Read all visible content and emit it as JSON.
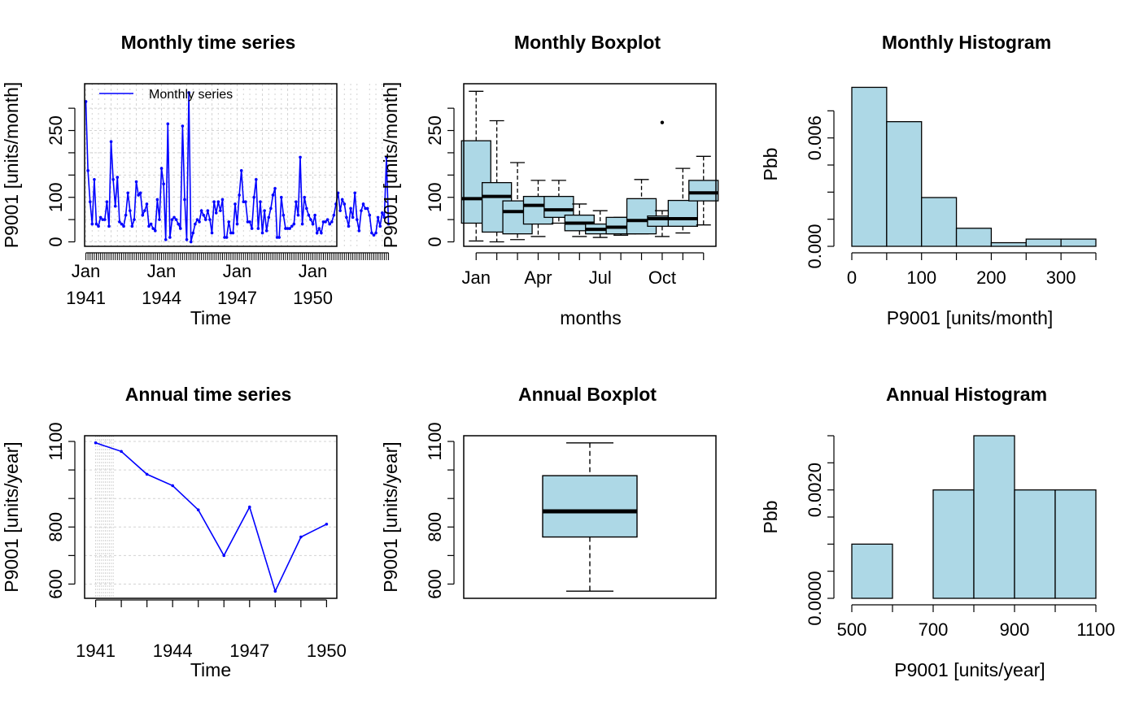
{
  "colors": {
    "box": "#add8e6",
    "bar": "#add8e6",
    "line": "#0000ff",
    "grid": "#d3d3d3",
    "axis": "#000000"
  },
  "chart_data": [
    {
      "id": "monthly-ts",
      "type": "line",
      "title": "Monthly time series",
      "xlabel": "Time",
      "ylabel": "P9001 [units/month]",
      "xlim": [
        1940.95,
        1950.95
      ],
      "ylim": [
        -10,
        355
      ],
      "yticks": [
        0,
        100,
        250
      ],
      "yticks_minor": [
        50,
        150,
        200,
        300
      ],
      "xticks": [
        {
          "line1": "Jan",
          "line2": "1941",
          "value": 1941
        },
        {
          "line1": "Jan",
          "line2": "1944",
          "value": 1944
        },
        {
          "line1": "Jan",
          "line2": "1947",
          "value": 1947
        },
        {
          "line1": "Jan",
          "line2": "1950",
          "value": 1950
        }
      ],
      "grid": true,
      "legend": {
        "label": "Monthly series",
        "position": "top-left"
      },
      "x": {
        "start": 1941,
        "step_months": 1
      },
      "values": [
        315,
        160,
        90,
        40,
        140,
        40,
        35,
        55,
        50,
        50,
        90,
        35,
        225,
        140,
        80,
        145,
        45,
        40,
        35,
        60,
        110,
        70,
        35,
        50,
        135,
        105,
        110,
        60,
        70,
        85,
        35,
        40,
        30,
        25,
        95,
        50,
        165,
        130,
        5,
        265,
        10,
        50,
        55,
        50,
        40,
        30,
        260,
        95,
        5,
        335,
        0,
        20,
        40,
        50,
        45,
        70,
        60,
        50,
        70,
        50,
        20,
        90,
        65,
        90,
        70,
        95,
        10,
        10,
        45,
        20,
        20,
        85,
        40,
        105,
        160,
        90,
        90,
        45,
        45,
        30,
        100,
        140,
        30,
        90,
        20,
        70,
        25,
        55,
        75,
        105,
        120,
        10,
        10,
        100,
        60,
        30,
        30,
        30,
        35,
        40,
        90,
        60,
        190,
        40,
        100,
        75,
        60,
        50,
        40,
        60,
        20,
        30,
        20,
        45,
        45,
        50,
        40,
        45,
        60,
        85,
        110,
        70,
        95,
        85,
        55,
        35,
        75,
        55,
        110,
        50,
        25,
        70,
        85,
        75,
        75,
        60,
        20,
        15,
        20,
        55,
        35,
        65,
        55,
        190,
        40
      ]
    },
    {
      "id": "monthly-box",
      "type": "box",
      "title": "Monthly Boxplot",
      "xlabel": "months",
      "ylabel": "P9001 [units/month]",
      "ylim": [
        -10,
        355
      ],
      "yticks": [
        0,
        100,
        250
      ],
      "yticks_minor": [
        50,
        150,
        200,
        300
      ],
      "xtick_labels": [
        "Jan",
        "Apr",
        "Jul",
        "Oct"
      ],
      "xtick_positions": [
        1,
        4,
        7,
        10
      ],
      "boxes": [
        {
          "lo": 2,
          "q1": 42,
          "med": 97,
          "q3": 227,
          "hi": 338
        },
        {
          "lo": 0,
          "q1": 22,
          "med": 102,
          "q3": 133,
          "hi": 272
        },
        {
          "lo": 5,
          "q1": 18,
          "med": 68,
          "q3": 92,
          "hi": 178
        },
        {
          "lo": 12,
          "q1": 40,
          "med": 82,
          "q3": 102,
          "hi": 138
        },
        {
          "lo": 42,
          "q1": 55,
          "med": 72,
          "q3": 102,
          "hi": 138
        },
        {
          "lo": 12,
          "q1": 25,
          "med": 42,
          "q3": 60,
          "hi": 85
        },
        {
          "lo": 10,
          "q1": 18,
          "med": 28,
          "q3": 40,
          "hi": 70
        },
        {
          "lo": 15,
          "q1": 18,
          "med": 33,
          "q3": 55,
          "hi": 55
        },
        {
          "lo": 18,
          "q1": 18,
          "med": 48,
          "q3": 97,
          "hi": 140
        },
        {
          "lo": 12,
          "q1": 35,
          "med": 52,
          "q3": 58,
          "hi": 70,
          "outliers": [
            268
          ]
        },
        {
          "lo": 20,
          "q1": 35,
          "med": 52,
          "q3": 93,
          "hi": 165
        },
        {
          "lo": 38,
          "q1": 92,
          "med": 110,
          "q3": 138,
          "hi": 192
        }
      ]
    },
    {
      "id": "monthly-hist",
      "type": "histogram",
      "title": "Monthly Histogram",
      "xlabel": "P9001 [units/month]",
      "ylabel": "Pbb",
      "xlim": [
        0,
        350
      ],
      "ylim": [
        0,
        0.009
      ],
      "xticks": [
        0,
        100,
        200,
        300
      ],
      "xticks_minor": [
        50,
        150,
        250,
        350
      ],
      "yticks": [
        0,
        0.003,
        0.006
      ],
      "yticks_minor": [
        0.0015,
        0.0045,
        0.0075
      ],
      "ytick_labels": [
        "0.000",
        "0.006"
      ],
      "ytick_label_values": [
        0,
        0.006
      ],
      "bins": [
        0,
        50,
        100,
        150,
        200,
        250,
        300,
        350
      ],
      "density": [
        0.0088,
        0.0069,
        0.0027,
        0.001,
        0.0002,
        0.0004,
        0.0004
      ]
    },
    {
      "id": "annual-ts",
      "type": "line",
      "title": "Annual time series",
      "xlabel": "Time",
      "ylabel": "P9001 [units/year]",
      "xlim": [
        1940.95,
        1950.4
      ],
      "ylim": [
        550,
        1120
      ],
      "yticks": [
        600,
        800,
        1100
      ],
      "yticks_minor": [
        700,
        900,
        1000
      ],
      "xticks_labels": [
        "1941",
        "1944",
        "1947",
        "1950"
      ],
      "xticks_label_values": [
        1941,
        1944,
        1947,
        1950
      ],
      "xticks_all": [
        1941,
        1942,
        1943,
        1944,
        1945,
        1946,
        1947,
        1948,
        1949,
        1950
      ],
      "grid": true,
      "x": [
        1941,
        1942,
        1943,
        1944,
        1945,
        1946,
        1947,
        1948,
        1949,
        1950
      ],
      "values": [
        1095,
        1065,
        985,
        945,
        860,
        700,
        870,
        575,
        765,
        810
      ]
    },
    {
      "id": "annual-box",
      "type": "box",
      "title": "Annual Boxplot",
      "ylabel": "P9001 [units/year]",
      "ylim": [
        550,
        1120
      ],
      "yticks": [
        600,
        800,
        1100
      ],
      "yticks_minor": [
        700,
        900,
        1000
      ],
      "box": {
        "lo": 575,
        "q1": 765,
        "med": 855,
        "q3": 980,
        "hi": 1095
      }
    },
    {
      "id": "annual-hist",
      "type": "histogram",
      "title": "Annual Histogram",
      "xlabel": "P9001 [units/year]",
      "ylabel": "Pbb",
      "xlim": [
        500,
        1100
      ],
      "ylim": [
        0,
        0.003
      ],
      "xticks": [
        500,
        700,
        900,
        1100
      ],
      "xticks_minor": [
        600,
        800,
        1000
      ],
      "yticks": [
        0,
        0.0005,
        0.001,
        0.0015,
        0.002,
        0.0025,
        0.003
      ],
      "ytick_labels": [
        "0.0000",
        "0.0020"
      ],
      "ytick_label_values": [
        0,
        0.002
      ],
      "bins": [
        500,
        600,
        700,
        800,
        900,
        1000,
        1100
      ],
      "density": [
        0.001,
        0,
        0.002,
        0.003,
        0.002,
        0.002
      ]
    }
  ]
}
